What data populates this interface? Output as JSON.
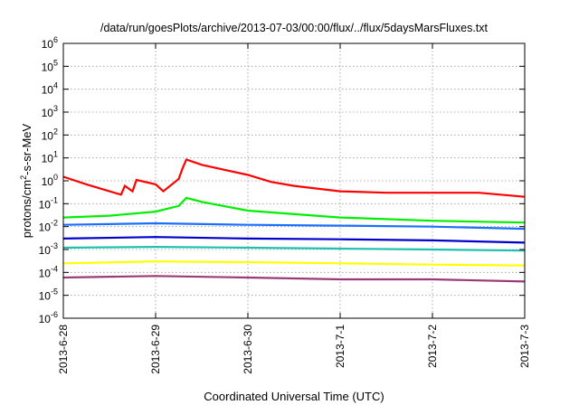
{
  "chart_data": {
    "type": "line",
    "title": "/data/run/goesPlots/archive/2013-07-03/00:00/flux/../flux/5daysMarsFluxes.txt",
    "xlabel": "Coordinated Universal Time (UTC)",
    "ylabel_parts": {
      "prefix": "protons/cm",
      "exp": "2",
      "suffix": "-s-sr-MeV"
    },
    "yscale": "log",
    "ylim": [
      1e-06,
      1000000.0
    ],
    "y_ticks": [
      {
        "base": "10",
        "exp": "-6"
      },
      {
        "base": "10",
        "exp": "-5"
      },
      {
        "base": "10",
        "exp": "-4"
      },
      {
        "base": "10",
        "exp": "-3"
      },
      {
        "base": "10",
        "exp": "-2"
      },
      {
        "base": "10",
        "exp": "-1"
      },
      {
        "base": "10",
        "exp": "0"
      },
      {
        "base": "10",
        "exp": "1"
      },
      {
        "base": "10",
        "exp": "2"
      },
      {
        "base": "10",
        "exp": "3"
      },
      {
        "base": "10",
        "exp": "4"
      },
      {
        "base": "10",
        "exp": "5"
      },
      {
        "base": "10",
        "exp": "6"
      }
    ],
    "x_ticks": [
      "2013-6-28",
      "2013-6-29",
      "2013-6-30",
      "2013-7-1",
      "2013-7-2",
      "2013-7-3"
    ],
    "xlim": [
      "2013-06-28T00:00",
      "2013-07-03T00:00"
    ],
    "grid": true,
    "series": [
      {
        "color": "#ff0000",
        "x": [
          "2013-06-28T00:00",
          "2013-06-28T06:00",
          "2013-06-28T12:00",
          "2013-06-28T15:00",
          "2013-06-28T16:00",
          "2013-06-28T18:00",
          "2013-06-28T19:00",
          "2013-06-29T00:00",
          "2013-06-29T02:00",
          "2013-06-29T06:00",
          "2013-06-29T07:00",
          "2013-06-29T08:00",
          "2013-06-29T12:00",
          "2013-06-30T00:00",
          "2013-06-30T06:00",
          "2013-06-30T12:00",
          "2013-07-01T00:00",
          "2013-07-01T12:00",
          "2013-07-02T00:00",
          "2013-07-02T12:00",
          "2013-07-03T00:00"
        ],
        "values": [
          1.5,
          0.7,
          0.35,
          0.25,
          0.6,
          0.35,
          1.1,
          0.7,
          0.35,
          1.2,
          3.5,
          8.5,
          5.0,
          1.8,
          0.9,
          0.6,
          0.35,
          0.3,
          0.3,
          0.3,
          0.2
        ]
      },
      {
        "color": "#00ee00",
        "x": [
          "2013-06-28T00:00",
          "2013-06-28T12:00",
          "2013-06-29T00:00",
          "2013-06-29T06:00",
          "2013-06-29T08:00",
          "2013-06-29T12:00",
          "2013-06-30T00:00",
          "2013-07-01T00:00",
          "2013-07-02T00:00",
          "2013-07-03T00:00"
        ],
        "values": [
          0.025,
          0.03,
          0.045,
          0.08,
          0.18,
          0.12,
          0.05,
          0.025,
          0.018,
          0.015
        ]
      },
      {
        "color": "#1a6fff",
        "x": [
          "2013-06-28T00:00",
          "2013-06-29T00:00",
          "2013-06-30T00:00",
          "2013-07-01T00:00",
          "2013-07-02T00:00",
          "2013-07-03T00:00"
        ],
        "values": [
          0.012,
          0.014,
          0.012,
          0.011,
          0.01,
          0.008
        ]
      },
      {
        "color": "#0000cc",
        "x": [
          "2013-06-28T00:00",
          "2013-06-29T00:00",
          "2013-06-30T00:00",
          "2013-07-01T00:00",
          "2013-07-02T00:00",
          "2013-07-03T00:00"
        ],
        "values": [
          0.003,
          0.0035,
          0.003,
          0.0028,
          0.0025,
          0.002
        ]
      },
      {
        "color": "#20c0b0",
        "x": [
          "2013-06-28T00:00",
          "2013-06-29T00:00",
          "2013-06-30T00:00",
          "2013-07-01T00:00",
          "2013-07-02T00:00",
          "2013-07-03T00:00"
        ],
        "values": [
          0.0012,
          0.0013,
          0.0012,
          0.0011,
          0.001,
          0.0009
        ]
      },
      {
        "color": "#ffff00",
        "x": [
          "2013-06-28T00:00",
          "2013-06-29T00:00",
          "2013-06-30T00:00",
          "2013-07-01T00:00",
          "2013-07-02T00:00",
          "2013-07-03T00:00"
        ],
        "values": [
          0.00025,
          0.0003,
          0.00028,
          0.00025,
          0.00022,
          0.0002
        ]
      },
      {
        "color": "#9b3a78",
        "x": [
          "2013-06-28T00:00",
          "2013-06-29T00:00",
          "2013-06-30T00:00",
          "2013-07-01T00:00",
          "2013-07-02T00:00",
          "2013-07-03T00:00"
        ],
        "values": [
          6e-05,
          7e-05,
          6e-05,
          5e-05,
          5e-05,
          4e-05
        ]
      }
    ]
  }
}
